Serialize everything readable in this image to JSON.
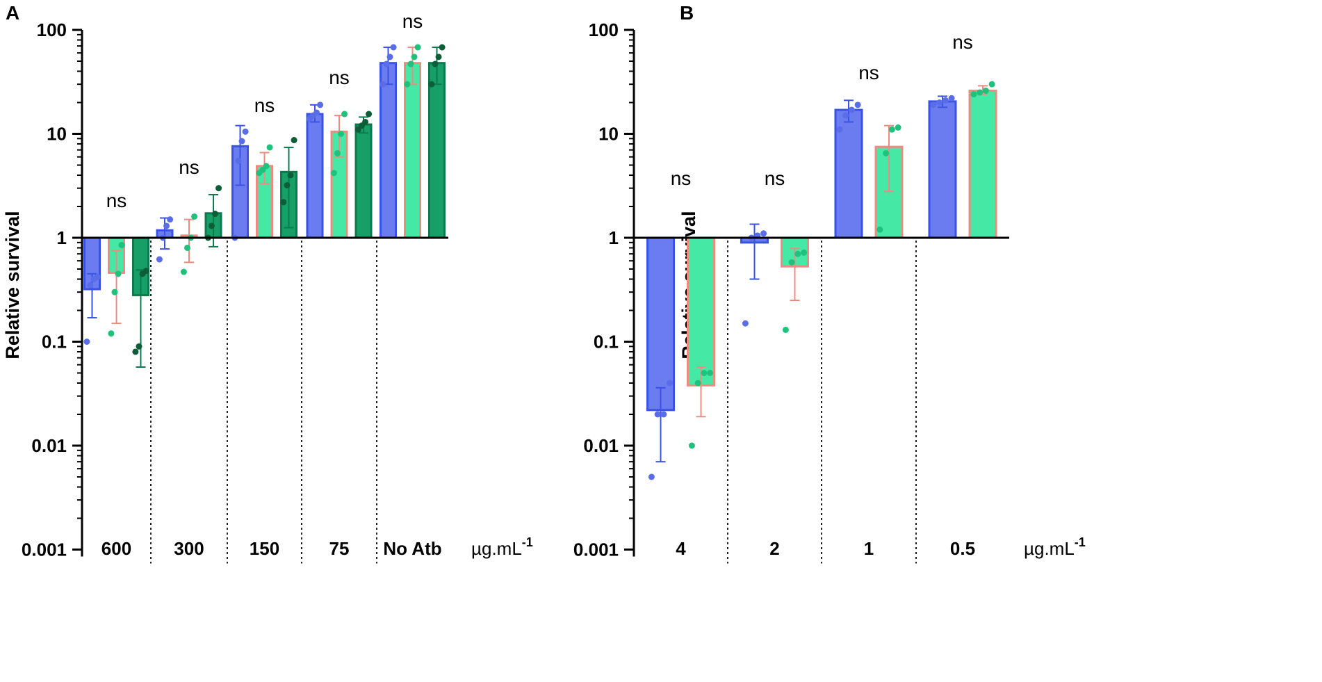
{
  "colors": {
    "series1_fill": "#6b7cf0",
    "series1_stroke": "#3b52e6",
    "series2_fill": "#46e8a6",
    "series2_stroke": "#ec8c80",
    "series3_fill": "#16a068",
    "series3_stroke": "#0b7a4c",
    "dot1": "#5a6de8",
    "dot2": "#1ec27c",
    "dot3": "#0b5e38"
  },
  "chart_data": [
    {
      "panel": "A",
      "type": "bar",
      "scale": "log",
      "baseline": 1,
      "ylabel": "Relative survival",
      "ylim": [
        0.001,
        100
      ],
      "yticks": [
        "0.001",
        "0.01",
        "0.1",
        "1",
        "10",
        "100"
      ],
      "xlabel": "µg.mL-1",
      "unit_main": "µg.mL",
      "unit_sup": "-1",
      "categories": [
        "600",
        "300",
        "150",
        "75",
        "No Atb"
      ],
      "significance": [
        "ns",
        "ns",
        "ns",
        "ns",
        "ns"
      ],
      "series": [
        {
          "values": [
            0.32,
            1.18,
            7.6,
            15.5,
            48
          ],
          "errors_low": [
            0.17,
            0.78,
            3.2,
            13,
            30
          ],
          "errors_high": [
            0.45,
            1.55,
            12,
            19,
            68
          ],
          "points": [
            [
              0.1,
              0.35,
              0.4,
              0.42
            ],
            [
              0.62,
              1.0,
              1.3,
              1.5
            ],
            [
              1.0,
              5.5,
              8.5,
              10.5
            ],
            [
              14,
              15,
              16,
              19
            ],
            [
              30,
              47,
              55,
              68
            ]
          ]
        },
        {
          "values": [
            0.46,
            1.05,
            4.9,
            10.5,
            48
          ],
          "errors_low": [
            0.15,
            0.58,
            3.3,
            6.0,
            30
          ],
          "errors_high": [
            0.75,
            1.5,
            6.6,
            15,
            68
          ],
          "points": [
            [
              0.12,
              0.3,
              0.45,
              0.85
            ],
            [
              0.47,
              0.8,
              1.0,
              1.6
            ],
            [
              4.2,
              4.5,
              4.9,
              7.4
            ],
            [
              4.2,
              6.5,
              10,
              15.5
            ],
            [
              30,
              47,
              55,
              68
            ]
          ]
        },
        {
          "values": [
            0.28,
            1.72,
            4.3,
            12.3,
            48
          ],
          "errors_low": [
            0.057,
            0.82,
            1.25,
            10.2,
            30
          ],
          "errors_high": [
            0.49,
            2.6,
            7.4,
            14.5,
            68
          ],
          "points": [
            [
              0.08,
              0.09,
              0.45,
              0.48
            ],
            [
              1.0,
              1.3,
              1.7,
              3.0
            ],
            [
              2.2,
              3.2,
              4.0,
              8.7
            ],
            [
              11,
              12,
              13,
              15.5
            ],
            [
              30,
              47,
              55,
              68
            ]
          ]
        }
      ]
    },
    {
      "panel": "B",
      "type": "bar",
      "scale": "log",
      "baseline": 1,
      "ylabel": "Relative survival",
      "ylim": [
        0.001,
        100
      ],
      "yticks": [
        "0.001",
        "0.01",
        "0.1",
        "1",
        "10",
        "100"
      ],
      "xlabel": "µg.mL-1",
      "unit_main": "µg.mL",
      "unit_sup": "-1",
      "categories": [
        "4",
        "2",
        "1",
        "0.5"
      ],
      "significance": [
        "ns",
        "ns",
        "ns",
        "ns"
      ],
      "series": [
        {
          "values": [
            0.022,
            0.9,
            17,
            20.5
          ],
          "errors_low": [
            0.007,
            0.4,
            13,
            18
          ],
          "errors_high": [
            0.036,
            1.35,
            21,
            23
          ],
          "points": [
            [
              0.005,
              0.02,
              0.02,
              0.04
            ],
            [
              0.15,
              1.0,
              1.05,
              1.1
            ],
            [
              11,
              15,
              17,
              19
            ],
            [
              19,
              20,
              21,
              22
            ]
          ]
        },
        {
          "values": [
            0.038,
            0.53,
            7.5,
            26
          ],
          "errors_low": [
            0.019,
            0.25,
            2.8,
            24
          ],
          "errors_high": [
            0.057,
            0.79,
            12,
            29
          ],
          "points": [
            [
              0.01,
              0.04,
              0.05,
              0.05
            ],
            [
              0.13,
              0.58,
              0.7,
              0.72
            ],
            [
              1.2,
              6.5,
              11,
              11.5
            ],
            [
              24,
              25,
              26,
              30
            ]
          ]
        }
      ]
    }
  ]
}
